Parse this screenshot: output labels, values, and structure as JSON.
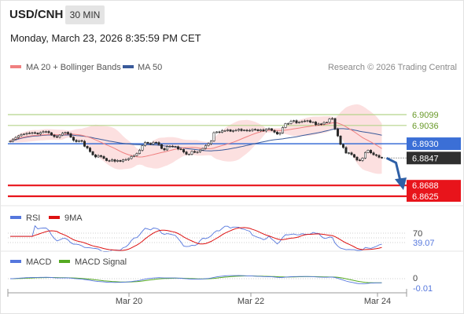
{
  "header": {
    "symbol": "USD/CNH",
    "timeframe": "30 MIN",
    "datetime": "Monday, March 23, 2026 8:35:59 PM CET",
    "copyright": "Research © 2026 Trading Central"
  },
  "colors": {
    "ma20": "#f08080",
    "ma50": "#3a5a9a",
    "bollinger_fill": "#fcdada",
    "resistance": "#b5d48a",
    "pivot": "#3b6fd6",
    "support": "#e8141b",
    "price_tag": "#2f2f2f",
    "arrow": "#2e5fa6",
    "rsi": "#5577dd",
    "rsi_ma": "#dd1111",
    "macd": "#5577dd",
    "macd_signal": "#55aa22",
    "up_candle": "#3a3a3a",
    "down_candle": "#2a2a2a"
  },
  "chart_data": [
    {
      "type": "candlestick",
      "panel": "price",
      "legend": [
        {
          "name": "MA 20 + Bollinger Bands",
          "color": "#f08080"
        },
        {
          "name": "MA 50",
          "color": "#3a5a9a"
        }
      ],
      "x_ticks": [
        "Mar 20",
        "Mar 22",
        "Mar 24"
      ],
      "ylim": [
        6.858,
        6.92
      ],
      "close": [
        6.8945,
        6.8956,
        6.8966,
        6.8976,
        6.8983,
        6.8986,
        6.899,
        6.8992,
        6.8994,
        6.8992,
        6.8986,
        6.8995,
        6.9,
        6.9001,
        6.8994,
        6.898,
        6.8971,
        6.8968,
        6.898,
        6.8991,
        6.8996,
        6.8988,
        6.8968,
        6.895,
        6.8942,
        6.8948,
        6.8944,
        6.8915,
        6.8905,
        6.8884,
        6.8865,
        6.8853,
        6.8861,
        6.8856,
        6.8845,
        6.8832,
        6.883,
        6.8837,
        6.8828,
        6.8833,
        6.8827,
        6.8836,
        6.8838,
        6.8844,
        6.8856,
        6.8862,
        6.8873,
        6.8892,
        6.8919,
        6.8938,
        6.8932,
        6.8928,
        6.8938,
        6.8937,
        6.8925,
        6.8902,
        6.8894,
        6.8914,
        6.8916,
        6.8914,
        6.8913,
        6.8899,
        6.8897,
        6.8882,
        6.8869,
        6.8869,
        6.8885,
        6.888,
        6.8882,
        6.8893,
        6.8903,
        6.8919,
        6.893,
        6.8946,
        6.8994,
        6.8999,
        6.8996,
        6.9006,
        6.9006,
        6.9011,
        6.9002,
        6.9006,
        6.9008,
        6.9014,
        6.9006,
        6.9009,
        6.9005,
        6.9007,
        6.9013,
        6.9012,
        6.9005,
        6.9011,
        6.9004,
        6.9014,
        6.9017,
        6.9007,
        6.8997,
        6.8986,
        6.8993,
        6.9024,
        6.9047,
        6.9047,
        6.906,
        6.9064,
        6.9051,
        6.9056,
        6.9059,
        6.9062,
        6.9064,
        6.9055,
        6.9056,
        6.904,
        6.9045,
        6.9044,
        6.9053,
        6.9054,
        6.9074,
        6.9076,
        6.9016,
        6.8975,
        6.8926,
        6.8908,
        6.8876,
        6.8877,
        6.8867,
        6.8852,
        6.8835,
        6.8833,
        6.8847,
        6.8879,
        6.8892,
        6.8877,
        6.8866,
        6.8862,
        6.8851,
        6.8847
      ],
      "levels": [
        {
          "value": 6.9099,
          "label": "6.9099",
          "kind": "resistance"
        },
        {
          "value": 6.9036,
          "label": "6.9036",
          "kind": "resistance"
        },
        {
          "value": 6.893,
          "label": "6.8930",
          "kind": "pivot"
        },
        {
          "value": 6.8847,
          "label": "6.8847",
          "kind": "last"
        },
        {
          "value": 6.8688,
          "label": "6.8688",
          "kind": "support"
        },
        {
          "value": 6.8625,
          "label": "6.8625",
          "kind": "support"
        }
      ],
      "forecast_arrow": {
        "from": 6.8847,
        "to": 6.8688
      }
    },
    {
      "type": "line",
      "panel": "rsi",
      "series": [
        {
          "name": "RSI"
        },
        {
          "name": "9MA"
        }
      ],
      "levels": [
        {
          "value": 70,
          "label": "70"
        }
      ],
      "last_value": "39.07"
    },
    {
      "type": "line",
      "panel": "macd",
      "series": [
        {
          "name": "MACD"
        },
        {
          "name": "MACD Signal"
        }
      ],
      "levels": [
        {
          "value": 0,
          "label": "0"
        }
      ],
      "last_value": "-0.01"
    }
  ]
}
